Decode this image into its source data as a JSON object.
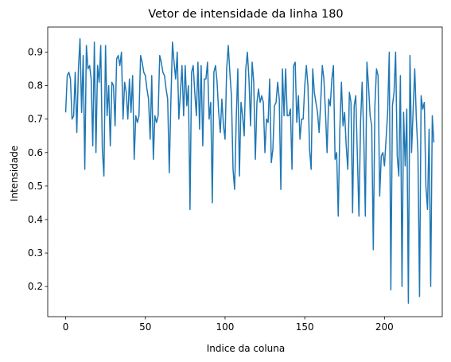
{
  "chart_data": {
    "type": "line",
    "title": "Vetor de intensidade da linha 180",
    "xlabel": "Indice da coluna",
    "ylabel": "Intensidade",
    "xlim": [
      -11.25,
      236.25
    ],
    "ylim": [
      0.11,
      0.975
    ],
    "xticks": [
      0,
      50,
      100,
      150,
      200
    ],
    "yticks": [
      0.2,
      0.3,
      0.4,
      0.5,
      0.6,
      0.7,
      0.8,
      0.9
    ],
    "ytick_labels": [
      "0.2",
      "0.3",
      "0.4",
      "0.5",
      "0.6",
      "0.7",
      "0.8",
      "0.9"
    ],
    "grid": false,
    "series_color": "#1f77b4",
    "series": [
      {
        "values": [
          0.72,
          0.83,
          0.84,
          0.82,
          0.7,
          0.71,
          0.84,
          0.66,
          0.85,
          0.94,
          0.72,
          0.89,
          0.55,
          0.92,
          0.85,
          0.86,
          0.82,
          0.62,
          0.93,
          0.6,
          0.86,
          0.81,
          0.92,
          0.61,
          0.53,
          0.92,
          0.71,
          0.8,
          0.62,
          0.81,
          0.8,
          0.68,
          0.88,
          0.89,
          0.86,
          0.9,
          0.7,
          0.81,
          0.78,
          0.7,
          0.82,
          0.72,
          0.83,
          0.58,
          0.71,
          0.69,
          0.71,
          0.89,
          0.87,
          0.84,
          0.83,
          0.79,
          0.76,
          0.64,
          0.83,
          0.58,
          0.71,
          0.69,
          0.71,
          0.89,
          0.87,
          0.84,
          0.83,
          0.79,
          0.76,
          0.54,
          0.75,
          0.93,
          0.87,
          0.82,
          0.9,
          0.7,
          0.78,
          0.86,
          0.71,
          0.86,
          0.74,
          0.8,
          0.43,
          0.84,
          0.86,
          0.78,
          0.71,
          0.87,
          0.67,
          0.86,
          0.62,
          0.82,
          0.82,
          0.87,
          0.7,
          0.75,
          0.45,
          0.84,
          0.86,
          0.81,
          0.72,
          0.66,
          0.76,
          0.68,
          0.64,
          0.85,
          0.92,
          0.84,
          0.77,
          0.55,
          0.49,
          0.7,
          0.85,
          0.53,
          0.75,
          0.71,
          0.65,
          0.85,
          0.9,
          0.82,
          0.68,
          0.87,
          0.81,
          0.58,
          0.75,
          0.79,
          0.75,
          0.77,
          0.75,
          0.6,
          0.7,
          0.69,
          0.82,
          0.57,
          0.61,
          0.74,
          0.75,
          0.81,
          0.76,
          0.49,
          0.85,
          0.71,
          0.85,
          0.71,
          0.71,
          0.73,
          0.55,
          0.86,
          0.87,
          0.69,
          0.77,
          0.64,
          0.7,
          0.7,
          0.8,
          0.86,
          0.8,
          0.61,
          0.55,
          0.85,
          0.78,
          0.75,
          0.72,
          0.66,
          0.75,
          0.86,
          0.82,
          0.72,
          0.6,
          0.76,
          0.74,
          0.82,
          0.86,
          0.58,
          0.6,
          0.41,
          0.67,
          0.81,
          0.68,
          0.72,
          0.62,
          0.55,
          0.78,
          0.75,
          0.42,
          0.74,
          0.77,
          0.59,
          0.41,
          0.69,
          0.81,
          0.65,
          0.41,
          0.87,
          0.8,
          0.71,
          0.68,
          0.31,
          0.74,
          0.85,
          0.83,
          0.47,
          0.59,
          0.6,
          0.56,
          0.64,
          0.72,
          0.9,
          0.19,
          0.74,
          0.78,
          0.9,
          0.59,
          0.53,
          0.83,
          0.2,
          0.72,
          0.56,
          0.73,
          0.15,
          0.89,
          0.6,
          0.73,
          0.85,
          0.7,
          0.6,
          0.17,
          0.77,
          0.73,
          0.75,
          0.5,
          0.43,
          0.67,
          0.2,
          0.71,
          0.63
        ]
      }
    ]
  }
}
